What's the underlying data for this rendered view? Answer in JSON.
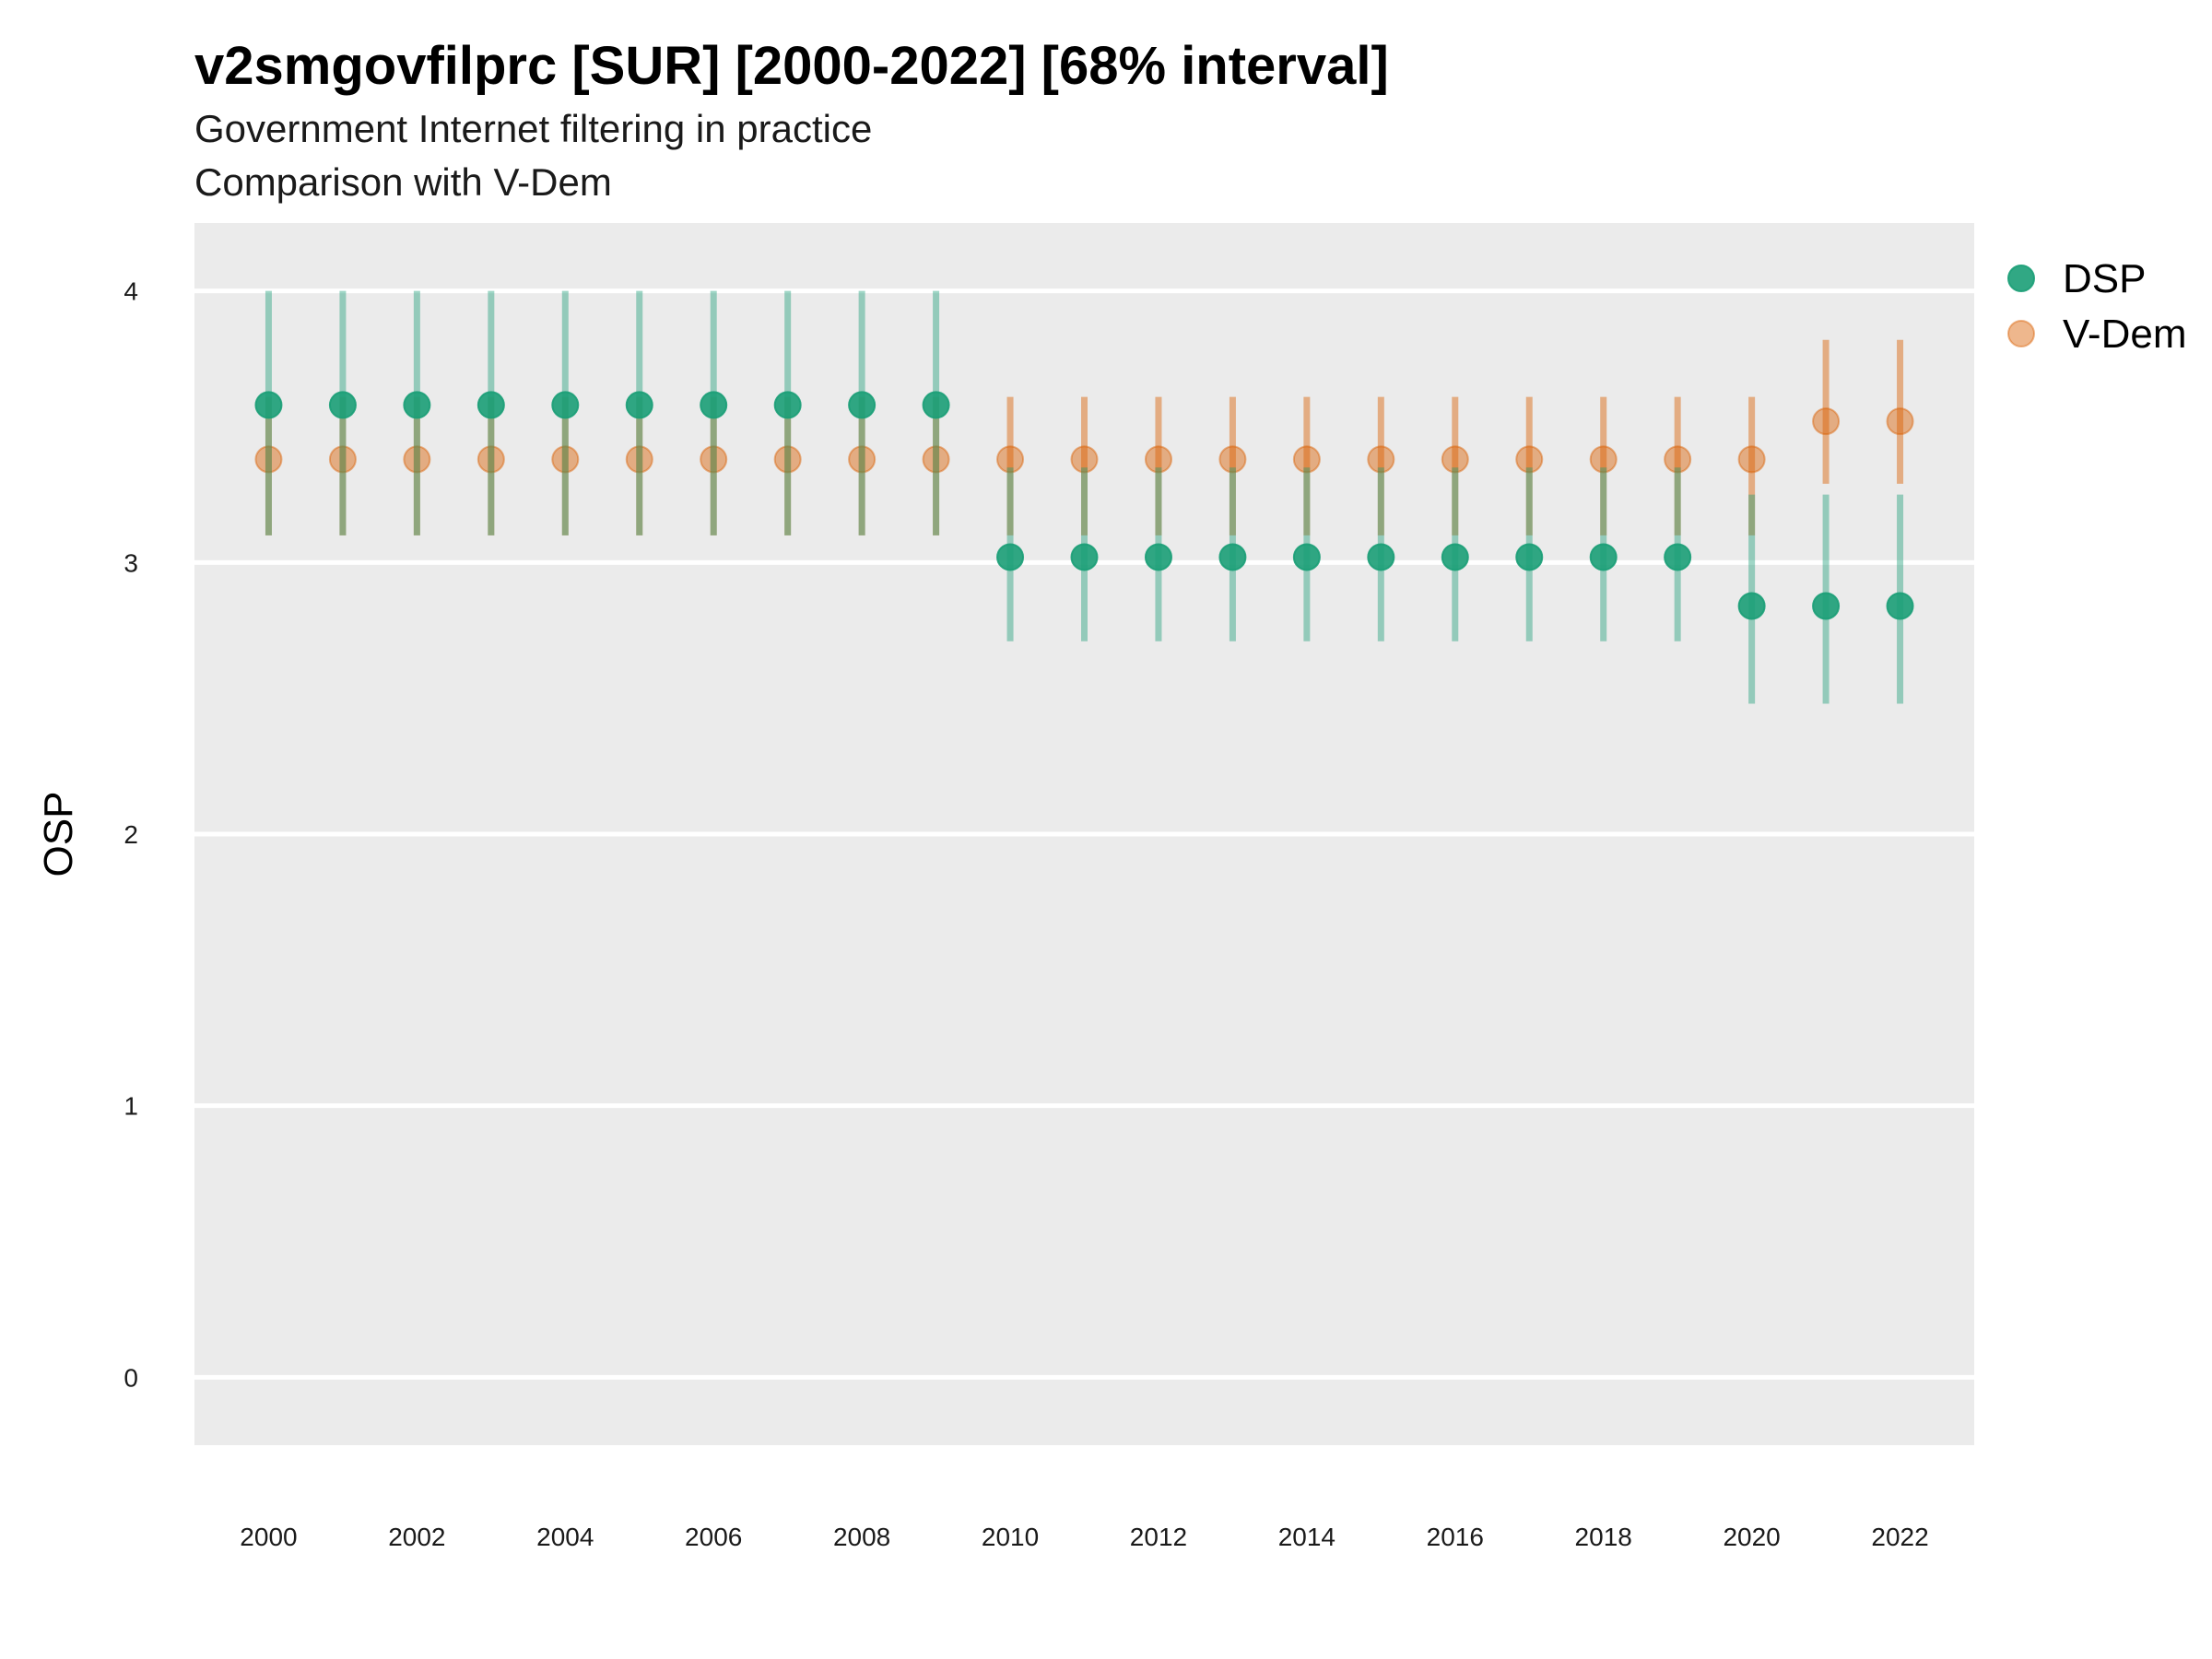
{
  "chart_data": {
    "type": "scatter",
    "title": "v2smgovfilprc [SUR] [2000-2022] [68% interval]",
    "subtitle": "Government Internet filtering in practice",
    "caption": "Comparison with V-Dem",
    "ylabel": "OSP",
    "xlabel": "",
    "ylim": [
      -0.25,
      4.25
    ],
    "xlim": [
      1999.0,
      2023.0
    ],
    "y_ticks": [
      0,
      1,
      2,
      3,
      4
    ],
    "x_ticks": [
      2000,
      2002,
      2004,
      2006,
      2008,
      2010,
      2012,
      2014,
      2016,
      2018,
      2020,
      2022
    ],
    "grid": true,
    "legend_position": "right",
    "x": [
      2000,
      2001,
      2002,
      2003,
      2004,
      2005,
      2006,
      2007,
      2008,
      2009,
      2010,
      2011,
      2012,
      2013,
      2014,
      2015,
      2016,
      2017,
      2018,
      2019,
      2020,
      2021,
      2022
    ],
    "series": [
      {
        "name": "DSP",
        "color": "#1b9e77",
        "values": [
          3.58,
          3.58,
          3.58,
          3.58,
          3.58,
          3.58,
          3.58,
          3.58,
          3.58,
          3.58,
          3.02,
          3.02,
          3.02,
          3.02,
          3.02,
          3.02,
          3.02,
          3.02,
          3.02,
          3.02,
          2.84,
          2.84,
          2.84
        ],
        "lower": [
          3.1,
          3.1,
          3.1,
          3.1,
          3.1,
          3.1,
          3.1,
          3.1,
          3.1,
          3.1,
          2.71,
          2.71,
          2.71,
          2.71,
          2.71,
          2.71,
          2.71,
          2.71,
          2.71,
          2.71,
          2.48,
          2.48,
          2.48
        ],
        "upper": [
          4.0,
          4.0,
          4.0,
          4.0,
          4.0,
          4.0,
          4.0,
          4.0,
          4.0,
          4.0,
          3.35,
          3.35,
          3.35,
          3.35,
          3.35,
          3.35,
          3.35,
          3.35,
          3.35,
          3.35,
          3.25,
          3.25,
          3.25
        ]
      },
      {
        "name": "V-Dem",
        "color": "#d95f02",
        "values": [
          3.38,
          3.38,
          3.38,
          3.38,
          3.38,
          3.38,
          3.38,
          3.38,
          3.38,
          3.38,
          3.38,
          3.38,
          3.38,
          3.38,
          3.38,
          3.38,
          3.38,
          3.38,
          3.38,
          3.38,
          3.38,
          3.52,
          3.52
        ],
        "lower": [
          3.1,
          3.1,
          3.1,
          3.1,
          3.1,
          3.1,
          3.1,
          3.1,
          3.1,
          3.1,
          3.1,
          3.1,
          3.1,
          3.1,
          3.1,
          3.1,
          3.1,
          3.1,
          3.1,
          3.1,
          3.1,
          3.29,
          3.29
        ],
        "upper": [
          3.61,
          3.61,
          3.61,
          3.61,
          3.61,
          3.61,
          3.61,
          3.61,
          3.61,
          3.61,
          3.61,
          3.61,
          3.61,
          3.61,
          3.61,
          3.61,
          3.61,
          3.61,
          3.61,
          3.61,
          3.61,
          3.82,
          3.82
        ]
      }
    ]
  }
}
